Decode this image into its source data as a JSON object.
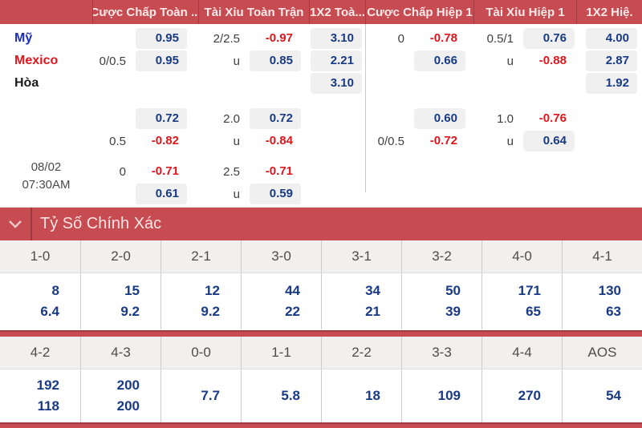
{
  "colors": {
    "header_red": "#c64c52",
    "divider_dark_red": "#a23c42",
    "odds_up_blue": "#183a85",
    "odds_down_red": "#e0161c",
    "box_gray": "#f0f0f0",
    "score_header_bg": "#f1f0ef"
  },
  "odds_panel": {
    "header_columns": [
      "",
      "Cược Chấp Toàn ...",
      "Tài Xỉu Toàn Trận",
      "1X2 Toà...",
      "Cược Chấp Hiệp 1",
      "Tài Xỉu Hiệp 1",
      "1X2 Hiệ."
    ],
    "match_time": {
      "date": "08/02",
      "time": "07:30AM"
    },
    "groups": [
      {
        "rows": [
          {
            "label": "Mỹ",
            "label_color": "#1b2eb8",
            "cells": [
              {
                "line": "",
                "value": "0.95",
                "trend": "up"
              },
              {
                "line": "2/2.5",
                "value": "-0.97",
                "trend": "down"
              },
              {
                "line": "",
                "value": "3.10",
                "trend": "up"
              },
              {
                "line": "0",
                "value": "-0.78",
                "trend": "down"
              },
              {
                "line": "0.5/1",
                "value": "0.76",
                "trend": "up"
              },
              {
                "line": "",
                "value": "4.00",
                "trend": "up"
              }
            ]
          },
          {
            "label": "Mexico",
            "label_color": "#e0161c",
            "cells": [
              {
                "line": "0/0.5",
                "value": "0.95",
                "trend": "up"
              },
              {
                "line": "u",
                "value": "0.85",
                "trend": "up"
              },
              {
                "line": "",
                "value": "2.21",
                "trend": "up"
              },
              {
                "line": "",
                "value": "0.66",
                "trend": "up"
              },
              {
                "line": "u",
                "value": "-0.88",
                "trend": "down"
              },
              {
                "line": "",
                "value": "2.87",
                "trend": "up"
              }
            ]
          },
          {
            "label": "Hòa",
            "label_color": "#1a1a1a",
            "cells": [
              null,
              null,
              {
                "line": "",
                "value": "3.10",
                "trend": "up"
              },
              null,
              null,
              {
                "line": "",
                "value": "1.92",
                "trend": "up"
              }
            ]
          }
        ]
      },
      {
        "rows": [
          {
            "label": "",
            "cells": [
              {
                "line": "",
                "value": "0.72",
                "trend": "up"
              },
              {
                "line": "2.0",
                "value": "0.72",
                "trend": "up"
              },
              null,
              {
                "line": "",
                "value": "0.60",
                "trend": "up"
              },
              {
                "line": "1.0",
                "value": "-0.76",
                "trend": "down"
              },
              null
            ]
          },
          {
            "label": "",
            "cells": [
              {
                "line": "0.5",
                "value": "-0.82",
                "trend": "down"
              },
              {
                "line": "u",
                "value": "-0.84",
                "trend": "down"
              },
              null,
              {
                "line": "0/0.5",
                "value": "-0.72",
                "trend": "down"
              },
              {
                "line": "u",
                "value": "0.64",
                "trend": "up"
              },
              null
            ]
          }
        ]
      },
      {
        "rows": [
          {
            "label": "",
            "cells": [
              {
                "line": "0",
                "value": "-0.71",
                "trend": "down"
              },
              {
                "line": "2.5",
                "value": "-0.71",
                "trend": "down"
              },
              null,
              null,
              null,
              null
            ]
          },
          {
            "label": "",
            "cells": [
              {
                "line": "",
                "value": "0.61",
                "trend": "up"
              },
              {
                "line": "u",
                "value": "0.59",
                "trend": "up"
              },
              null,
              null,
              null,
              null
            ]
          }
        ]
      }
    ]
  },
  "score_section": {
    "title": "Tỷ Số Chính Xác",
    "rows": [
      {
        "cells": [
          {
            "score": "1-0",
            "odds": [
              "8",
              "6.4"
            ]
          },
          {
            "score": "2-0",
            "odds": [
              "15",
              "9.2"
            ]
          },
          {
            "score": "2-1",
            "odds": [
              "12",
              "9.2"
            ]
          },
          {
            "score": "3-0",
            "odds": [
              "44",
              "22"
            ]
          },
          {
            "score": "3-1",
            "odds": [
              "34",
              "21"
            ]
          },
          {
            "score": "3-2",
            "odds": [
              "50",
              "39"
            ]
          },
          {
            "score": "4-0",
            "odds": [
              "171",
              "65"
            ]
          },
          {
            "score": "4-1",
            "odds": [
              "130",
              "63"
            ]
          }
        ]
      },
      {
        "cells": [
          {
            "score": "4-2",
            "odds": [
              "192",
              "118"
            ]
          },
          {
            "score": "4-3",
            "odds": [
              "200",
              "200"
            ]
          },
          {
            "score": "0-0",
            "odds": [
              "7.7"
            ]
          },
          {
            "score": "1-1",
            "odds": [
              "5.8"
            ]
          },
          {
            "score": "2-2",
            "odds": [
              "18"
            ]
          },
          {
            "score": "3-3",
            "odds": [
              "109"
            ]
          },
          {
            "score": "4-4",
            "odds": [
              "270"
            ]
          },
          {
            "score": "AOS",
            "odds": [
              "54"
            ]
          }
        ]
      }
    ]
  }
}
